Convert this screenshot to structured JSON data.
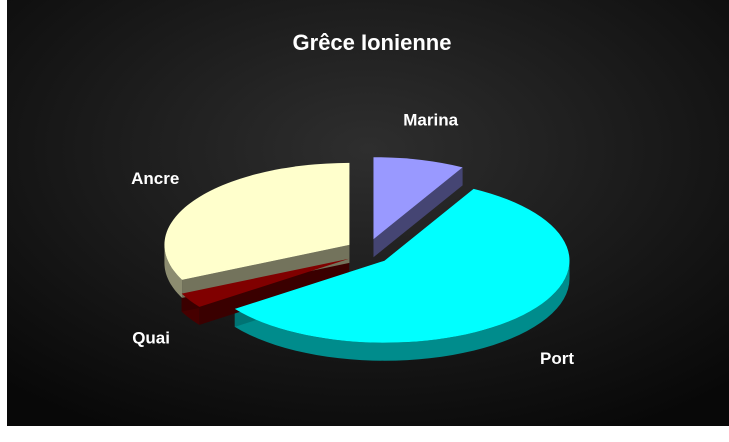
{
  "chart_data": {
    "type": "pie",
    "title": "Grêce Ionienne",
    "categories": [
      "Marina",
      "Port",
      "Quai",
      "Ancre"
    ],
    "values": [
      8,
      57,
      3,
      32
    ],
    "colors": [
      "#9999ff",
      "#00ffff",
      "#800000",
      "#ffffcc"
    ]
  }
}
